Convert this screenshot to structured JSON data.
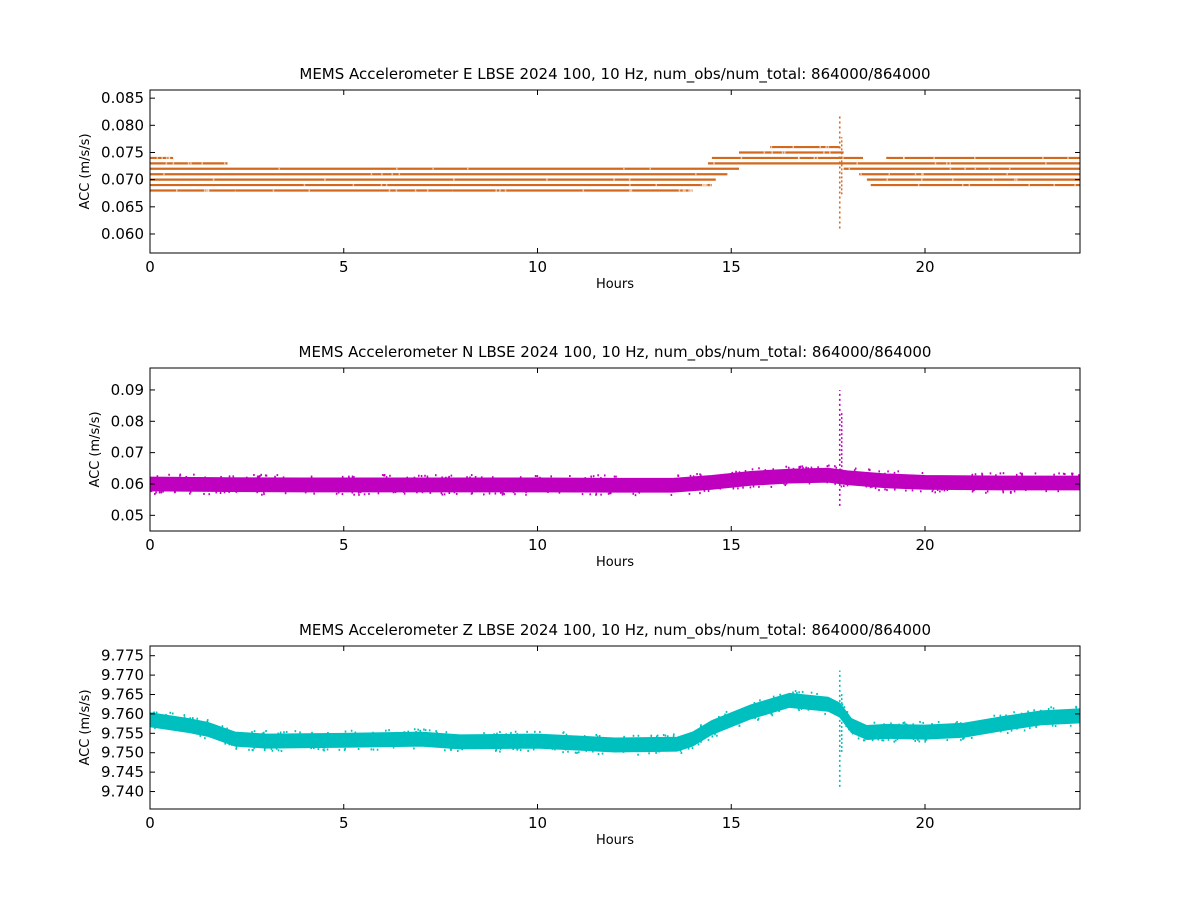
{
  "chart_data": [
    {
      "type": "scatter",
      "title": "MEMS Accelerometer E LBSE 2024 100, 10 Hz, num_obs/num_total: 864000/864000",
      "xlabel": "Hours",
      "ylabel": "ACC (m/s/s)",
      "xlim": [
        0,
        24
      ],
      "ylim": [
        0.0565,
        0.0865
      ],
      "xticks": [
        0,
        5,
        10,
        15,
        20
      ],
      "xtick_labels": [
        "0",
        "5",
        "10",
        "15",
        "20"
      ],
      "yticks": [
        0.06,
        0.065,
        0.07,
        0.075,
        0.08,
        0.085
      ],
      "ytick_labels": [
        "0.060",
        "0.065",
        "0.070",
        "0.075",
        "0.080",
        "0.085"
      ],
      "grid": false,
      "color": "#d2691e",
      "series": [
        {
          "levels": [
            {
              "y": 0.068,
              "segments": [
                [
                  0,
                  2.2
                ],
                [
                  2.2,
                  7.8
                ],
                [
                  7.8,
                  13.6
                ],
                [
                  13.6,
                  14.0
                ]
              ]
            },
            {
              "y": 0.069,
              "segments": [
                [
                  0,
                  14.2
                ],
                [
                  14.2,
                  14.5
                ],
                [
                  18.6,
                  24
                ]
              ]
            },
            {
              "y": 0.07,
              "segments": [
                [
                  0,
                  14.6
                ],
                [
                  18.5,
                  24
                ]
              ]
            },
            {
              "y": 0.071,
              "segments": [
                [
                  0,
                  14.9
                ],
                [
                  18.3,
                  24
                ]
              ]
            },
            {
              "y": 0.072,
              "segments": [
                [
                  0,
                  15.2
                ],
                [
                  17.9,
                  24
                ]
              ]
            },
            {
              "y": 0.073,
              "segments": [
                [
                  0,
                  2.0
                ],
                [
                  14.4,
                  24
                ]
              ]
            },
            {
              "y": 0.074,
              "segments": [
                [
                  0,
                  0.6
                ],
                [
                  14.5,
                  18.4
                ],
                [
                  19.0,
                  24
                ]
              ]
            },
            {
              "y": 0.075,
              "segments": [
                [
                  15.2,
                  17.9
                ]
              ]
            },
            {
              "y": 0.076,
              "segments": [
                [
                  16.0,
                  17.8
                ]
              ]
            }
          ],
          "spike": {
            "x": 17.8,
            "min": 0.061,
            "max": 0.082
          }
        }
      ]
    },
    {
      "type": "scatter",
      "title": "MEMS Accelerometer N LBSE 2024 100, 10 Hz, num_obs/num_total: 864000/864000",
      "xlabel": "Hours",
      "ylabel": "ACC (m/s/s)",
      "xlim": [
        0,
        24
      ],
      "ylim": [
        0.045,
        0.097
      ],
      "xticks": [
        0,
        5,
        10,
        15,
        20
      ],
      "xtick_labels": [
        "0",
        "5",
        "10",
        "15",
        "20"
      ],
      "yticks": [
        0.05,
        0.06,
        0.07,
        0.08,
        0.09
      ],
      "ytick_labels": [
        "0.05",
        "0.06",
        "0.07",
        "0.08",
        "0.09"
      ],
      "grid": false,
      "color": "#bf00bf",
      "series": [
        {
          "points": [
            [
              0,
              0.06
            ],
            [
              2,
              0.0598
            ],
            [
              4,
              0.0597
            ],
            [
              6,
              0.0597
            ],
            [
              8,
              0.0597
            ],
            [
              10,
              0.0597
            ],
            [
              12,
              0.0596
            ],
            [
              13.5,
              0.0596
            ],
            [
              14.5,
              0.0605
            ],
            [
              15.5,
              0.0618
            ],
            [
              16.5,
              0.0625
            ],
            [
              17.5,
              0.0628
            ],
            [
              18.0,
              0.062
            ],
            [
              19.0,
              0.061
            ],
            [
              20,
              0.0605
            ],
            [
              22,
              0.0603
            ],
            [
              24,
              0.0603
            ]
          ],
          "band_halfwidth": 0.0022,
          "spike": {
            "x": 17.8,
            "min": 0.053,
            "max": 0.09
          }
        }
      ]
    },
    {
      "type": "scatter",
      "title": "MEMS Accelerometer Z LBSE 2024 100, 10 Hz, num_obs/num_total: 864000/864000",
      "xlabel": "Hours",
      "ylabel": "ACC (m/s/s)",
      "xlim": [
        0,
        24
      ],
      "ylim": [
        9.7355,
        9.7775
      ],
      "xticks": [
        0,
        5,
        10,
        15,
        20
      ],
      "xtick_labels": [
        "0",
        "5",
        "10",
        "15",
        "20"
      ],
      "yticks": [
        9.74,
        9.745,
        9.75,
        9.755,
        9.76,
        9.765,
        9.77,
        9.775
      ],
      "ytick_labels": [
        "9.740",
        "9.745",
        "9.750",
        "9.755",
        "9.760",
        "9.765",
        "9.770",
        "9.775"
      ],
      "grid": false,
      "color": "#00bfbf",
      "series": [
        {
          "points": [
            [
              0,
              9.7585
            ],
            [
              1,
              9.757
            ],
            [
              1.5,
              9.756
            ],
            [
              2.2,
              9.7535
            ],
            [
              3,
              9.753
            ],
            [
              5,
              9.7532
            ],
            [
              7,
              9.7535
            ],
            [
              8,
              9.7528
            ],
            [
              10,
              9.753
            ],
            [
              11,
              9.7525
            ],
            [
              12,
              9.752
            ],
            [
              13.6,
              9.7522
            ],
            [
              14,
              9.7535
            ],
            [
              14.5,
              9.7565
            ],
            [
              15.5,
              9.7605
            ],
            [
              16.5,
              9.7635
            ],
            [
              17.5,
              9.7625
            ],
            [
              17.8,
              9.761
            ],
            [
              18.1,
              9.757
            ],
            [
              18.5,
              9.7552
            ],
            [
              19,
              9.7555
            ],
            [
              20,
              9.7553
            ],
            [
              21,
              9.7558
            ],
            [
              22,
              9.7575
            ],
            [
              23,
              9.759
            ],
            [
              24,
              9.7595
            ]
          ],
          "band_halfwidth": 0.0018,
          "spike": {
            "x": 17.8,
            "min": 9.7412,
            "max": 9.7712
          }
        }
      ]
    }
  ]
}
